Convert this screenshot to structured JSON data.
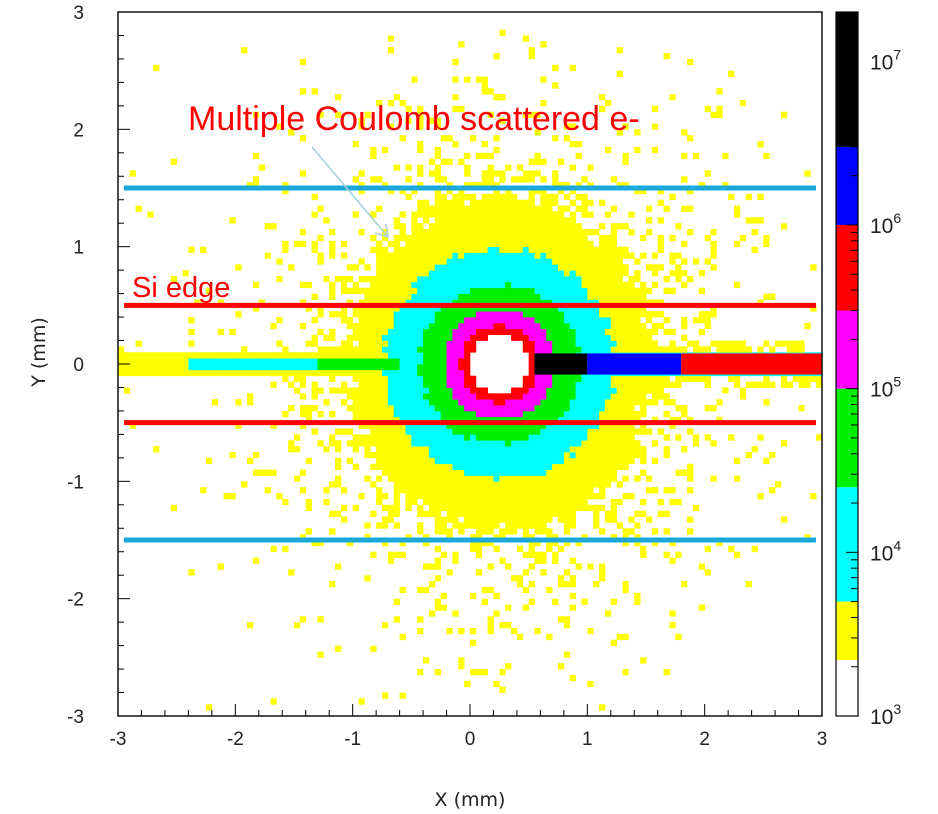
{
  "chart_data": {
    "type": "heatmap",
    "title": "",
    "xlabel": "X (mm)",
    "ylabel": "Y (mm)",
    "xlim": [
      -3,
      3
    ],
    "ylim": [
      -3,
      3
    ],
    "x_ticks": [
      "-3",
      "-2",
      "-1",
      "0",
      "1",
      "2",
      "3"
    ],
    "y_ticks": [
      "3",
      "2",
      "1",
      "0",
      "-1",
      "-2",
      "-3"
    ],
    "scale": "log",
    "colorbar": {
      "range": [
        1000,
        20000000
      ],
      "tick_labels": [
        {
          "base": "10",
          "exp": "3"
        },
        {
          "base": "10",
          "exp": "4"
        },
        {
          "base": "10",
          "exp": "5"
        },
        {
          "base": "10",
          "exp": "6"
        },
        {
          "base": "10",
          "exp": "7"
        }
      ],
      "colors": [
        "#ffffff",
        "#ffff00",
        "#00ffff",
        "#00ee00",
        "#ff00ff",
        "#ff0000",
        "#0000ff",
        "#000000"
      ]
    },
    "beam_line": {
      "y": 0,
      "segments": [
        {
          "x_start": 0.55,
          "x_end": 1.0,
          "color": "#000000"
        },
        {
          "x_start": 1.0,
          "x_end": 1.8,
          "color": "#0000ff"
        },
        {
          "x_start": 1.8,
          "x_end": 3.0,
          "color": "#ff0000"
        }
      ]
    },
    "core": {
      "x": 0.25,
      "y": 0.0
    },
    "horizontal_lines": [
      {
        "y": 1.5,
        "color": "#1aa8dd"
      },
      {
        "y": 0.5,
        "color": "#ff0000"
      },
      {
        "y": -0.5,
        "color": "#ff0000"
      },
      {
        "y": -1.5,
        "color": "#1aa8dd"
      }
    ],
    "annotations": [
      {
        "text": "Multiple Coulomb scattered e-",
        "color": "#ff0000"
      },
      {
        "text": "Si edge",
        "color": "#ff0000"
      }
    ]
  }
}
